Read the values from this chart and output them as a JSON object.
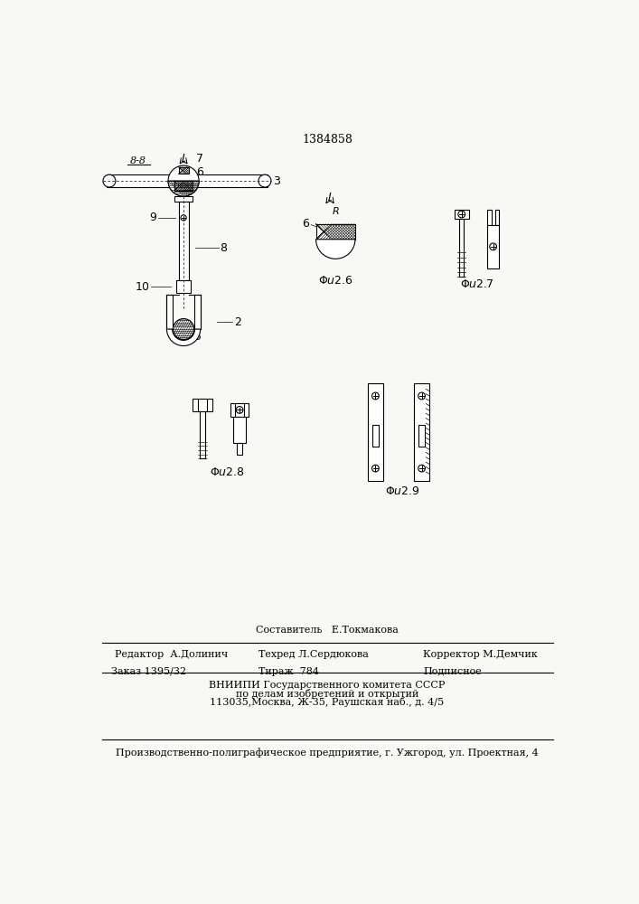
{
  "patent_number": "1384858",
  "background_color": "#f8f8f4",
  "section_label": "8-8",
  "editor_line": "Редактор  А.Долинич",
  "composer_line": "Составитель   Е.Токмакова",
  "techred_line": "Техред Л.Сердюкова",
  "corrector_line": "Корректор М.Демчик",
  "order_line": "Заказ 1395/32",
  "tirazh_line": "Тираж  784",
  "podpisnoe_line": "Подписное",
  "vniip_line1": "ВНИИПИ Государственного комитета СССР",
  "vniip_line2": "по делам изобретений и открытий",
  "vniip_line3": "113035,Москва, Ж-35, Раушская наб., д. 4/5",
  "production_line": "Производственно-полиграфическое предприятие, г. Ужгород, ул. Проектная, 4"
}
